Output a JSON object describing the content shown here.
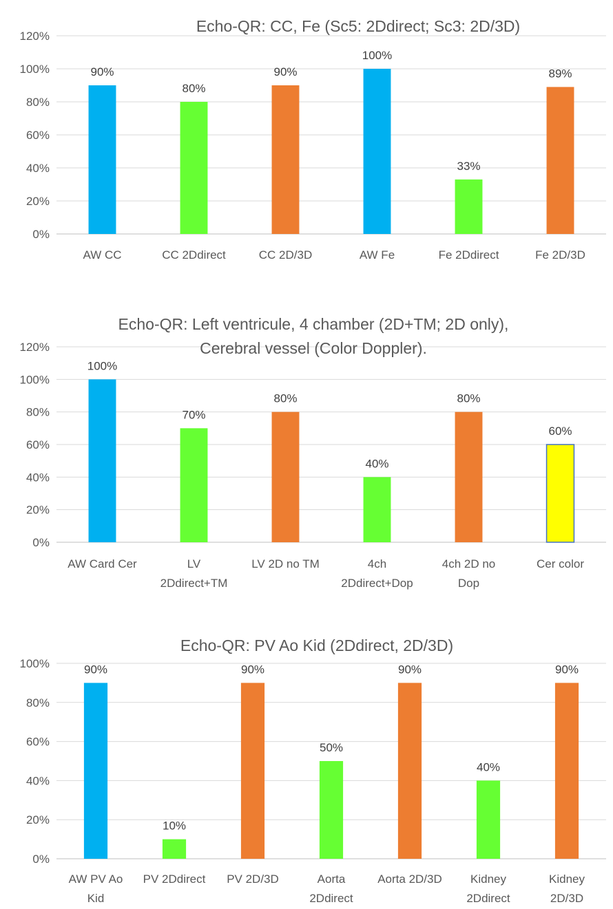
{
  "chart_data": [
    {
      "panel": "A",
      "type": "bar",
      "title": [
        "Echo-QR:  CC, Fe (Sc5: 2Ddirect; Sc3: 2D/3D)"
      ],
      "categories": [
        [
          "AW CC"
        ],
        [
          "CC 2Ddirect"
        ],
        [
          "CC 2D/3D"
        ],
        [
          "AW Fe"
        ],
        [
          "Fe 2Ddirect"
        ],
        [
          "Fe 2D/3D"
        ]
      ],
      "values": [
        90,
        80,
        90,
        100,
        33,
        89
      ],
      "value_labels": [
        "90%",
        "80%",
        "90%",
        "100%",
        "33%",
        "89%"
      ],
      "bar_colors": [
        "#00b0f0",
        "#66ff33",
        "#ed7d31",
        "#00b0f0",
        "#66ff33",
        "#ed7d31"
      ],
      "ylim": [
        0,
        120
      ],
      "yticks": [
        0,
        20,
        40,
        60,
        80,
        100,
        120
      ],
      "ytick_labels": [
        "0%",
        "20%",
        "40%",
        "60%",
        "80%",
        "100%",
        "120%"
      ],
      "xlabel": "",
      "ylabel": ""
    },
    {
      "panel": "B",
      "type": "bar",
      "title": [
        "Echo-QR: Left ventricule, 4 chamber (2D+TM; 2D only),",
        "Cerebral vessel (Color Doppler)."
      ],
      "categories": [
        [
          "AW Card Cer"
        ],
        [
          "LV",
          "2Ddirect+TM"
        ],
        [
          "LV 2D no TM"
        ],
        [
          "4ch",
          "2Ddirect+Dop"
        ],
        [
          "4ch 2D no",
          "Dop"
        ],
        [
          "Cer color"
        ]
      ],
      "values": [
        100,
        70,
        80,
        40,
        80,
        60
      ],
      "value_labels": [
        "100%",
        "70%",
        "80%",
        "40%",
        "80%",
        "60%"
      ],
      "bar_colors": [
        "#00b0f0",
        "#66ff33",
        "#ed7d31",
        "#66ff33",
        "#ed7d31",
        "#ffff00"
      ],
      "bar_outlines": [
        "",
        "",
        "",
        "",
        "",
        "#4472c4"
      ],
      "ylim": [
        0,
        120
      ],
      "yticks": [
        0,
        20,
        40,
        60,
        80,
        100,
        120
      ],
      "ytick_labels": [
        "0%",
        "20%",
        "40%",
        "60%",
        "80%",
        "100%",
        "120%"
      ],
      "xlabel": "",
      "ylabel": ""
    },
    {
      "panel": "C",
      "type": "bar",
      "title": [
        "Echo-QR: PV Ao Kid (2Ddirect, 2D/3D)"
      ],
      "categories": [
        [
          "AW PV Ao",
          "Kid"
        ],
        [
          "PV 2Ddirect"
        ],
        [
          "PV 2D/3D"
        ],
        [
          "Aorta",
          "2Ddirect"
        ],
        [
          "Aorta 2D/3D"
        ],
        [
          "Kidney",
          "2Ddirect"
        ],
        [
          "Kidney",
          "2D/3D"
        ]
      ],
      "values": [
        90,
        10,
        90,
        50,
        90,
        40,
        90
      ],
      "value_labels": [
        "90%",
        "10%",
        "90%",
        "50%",
        "90%",
        "40%",
        "90%"
      ],
      "bar_colors": [
        "#00b0f0",
        "#66ff33",
        "#ed7d31",
        "#66ff33",
        "#ed7d31",
        "#66ff33",
        "#ed7d31"
      ],
      "ylim": [
        0,
        100
      ],
      "yticks": [
        0,
        20,
        40,
        60,
        80,
        100
      ],
      "ytick_labels": [
        "0%",
        "20%",
        "40%",
        "60%",
        "80%",
        "100%"
      ],
      "xlabel": "",
      "ylabel": ""
    }
  ]
}
